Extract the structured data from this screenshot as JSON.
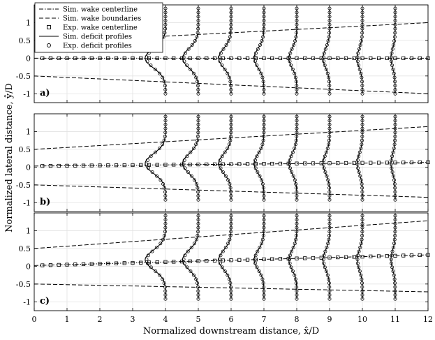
{
  "chart_data": {
    "type": "line",
    "xlabel": "Normalized downstream distance, x̂/D",
    "ylabel": "Normalized lateral distance, ŷ/D",
    "xlim": [
      0,
      12
    ],
    "ylim": [
      -1.25,
      1.5
    ],
    "x_ticks": [
      0,
      1,
      2,
      3,
      4,
      5,
      6,
      7,
      8,
      9,
      10,
      11,
      12
    ],
    "y_ticks": [
      -1,
      -0.5,
      0,
      0.5,
      1
    ],
    "y_tick_labels": [
      "-1",
      "-0.5",
      "0",
      "0.5",
      "1"
    ],
    "grid": true,
    "legend_position": "top-left",
    "legend": [
      {
        "label": "Sim. wake centerline",
        "style": "dash-dot"
      },
      {
        "label": "Sim. wake boundaries",
        "style": "dashed"
      },
      {
        "label": "Exp. wake centerline",
        "style": "square-marker"
      },
      {
        "label": "Sim. deficit profiles",
        "style": "solid"
      },
      {
        "label": "Exp. deficit profiles",
        "style": "circle-marker"
      }
    ],
    "profile_stations": [
      4,
      5,
      6,
      7,
      8,
      9,
      10,
      11
    ],
    "profile_bulge": [
      0.62,
      0.48,
      0.38,
      0.3,
      0.24,
      0.2,
      0.16,
      0.13
    ],
    "profile_sigma": 0.38,
    "panels": [
      {
        "label": "a)",
        "centerline": {
          "x": [
            0,
            12
          ],
          "y": [
            0,
            0
          ]
        },
        "boundary_upper": {
          "x": [
            4,
            12
          ],
          "y": [
            0.62,
            1.0
          ]
        },
        "boundary_lower": {
          "x": [
            0,
            12
          ],
          "y": [
            -0.5,
            -1.0
          ]
        },
        "exp_centerline": {
          "x0": 0.25,
          "dx": 0.25,
          "x1": 12,
          "y0": 0,
          "slope": 0
        },
        "profile_center_offset": 0
      },
      {
        "label": "b)",
        "centerline": {
          "x": [
            0,
            12
          ],
          "y": [
            0.03,
            0.13
          ]
        },
        "boundary_upper": {
          "x": [
            0,
            12
          ],
          "y": [
            0.5,
            1.14
          ]
        },
        "boundary_lower": {
          "x": [
            0,
            12
          ],
          "y": [
            -0.5,
            -0.85
          ]
        },
        "exp_centerline": {
          "x0": 0.25,
          "dx": 0.25,
          "x1": 12,
          "y0": 0.03,
          "slope": 0.009
        },
        "profile_center_offset": 0.1
      },
      {
        "label": "c)",
        "centerline": {
          "x": [
            0,
            12
          ],
          "y": [
            0.02,
            0.32
          ]
        },
        "boundary_upper": {
          "x": [
            0,
            12
          ],
          "y": [
            0.5,
            1.28
          ]
        },
        "boundary_lower": {
          "x": [
            0,
            12
          ],
          "y": [
            -0.5,
            -0.72
          ]
        },
        "exp_centerline": {
          "x0": 0.25,
          "dx": 0.25,
          "x1": 12,
          "y0": 0.02,
          "slope": 0.025
        },
        "profile_center_offset": 0.18
      }
    ]
  }
}
